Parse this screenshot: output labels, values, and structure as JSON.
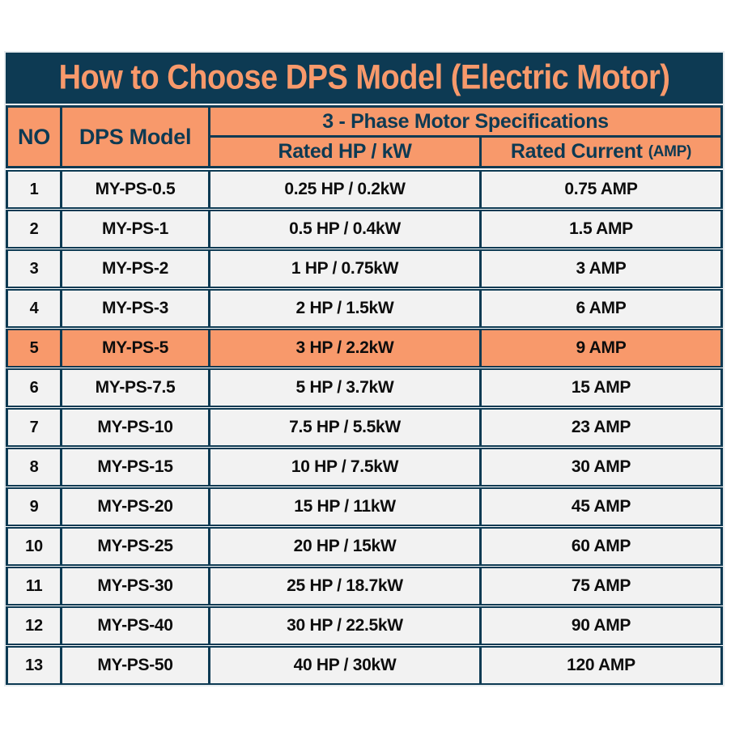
{
  "title": "How to Choose DPS Model (Electric Motor)",
  "colors": {
    "navy": "#0d3a53",
    "orange": "#f8996b",
    "row_bg": "#f2f2f2",
    "data_text": "#0d0d0d",
    "page_bg": "#ffffff"
  },
  "table": {
    "columns": {
      "no": "NO",
      "model": "DPS Model",
      "spec_group": "3 - Phase Motor Specifications",
      "rated_hp": "Rated HP / kW",
      "rated_current": "Rated Current",
      "rated_current_unit": "(AMP)"
    },
    "rows": [
      {
        "no": "1",
        "model": "MY-PS-0.5",
        "hp": "0.25 HP / 0.2kW",
        "amp": "0.75 AMP",
        "highlight": false
      },
      {
        "no": "2",
        "model": "MY-PS-1",
        "hp": "0.5 HP / 0.4kW",
        "amp": "1.5 AMP",
        "highlight": false
      },
      {
        "no": "3",
        "model": "MY-PS-2",
        "hp": "1 HP / 0.75kW",
        "amp": "3 AMP",
        "highlight": false
      },
      {
        "no": "4",
        "model": "MY-PS-3",
        "hp": "2 HP / 1.5kW",
        "amp": "6 AMP",
        "highlight": false
      },
      {
        "no": "5",
        "model": "MY-PS-5",
        "hp": "3 HP / 2.2kW",
        "amp": "9 AMP",
        "highlight": true
      },
      {
        "no": "6",
        "model": "MY-PS-7.5",
        "hp": "5 HP / 3.7kW",
        "amp": "15 AMP",
        "highlight": false
      },
      {
        "no": "7",
        "model": "MY-PS-10",
        "hp": "7.5 HP / 5.5kW",
        "amp": "23 AMP",
        "highlight": false
      },
      {
        "no": "8",
        "model": "MY-PS-15",
        "hp": "10 HP / 7.5kW",
        "amp": "30 AMP",
        "highlight": false
      },
      {
        "no": "9",
        "model": "MY-PS-20",
        "hp": "15 HP / 11kW",
        "amp": "45 AMP",
        "highlight": false
      },
      {
        "no": "10",
        "model": "MY-PS-25",
        "hp": "20 HP / 15kW",
        "amp": "60 AMP",
        "highlight": false
      },
      {
        "no": "11",
        "model": "MY-PS-30",
        "hp": "25 HP / 18.7kW",
        "amp": "75 AMP",
        "highlight": false
      },
      {
        "no": "12",
        "model": "MY-PS-40",
        "hp": "30 HP / 22.5kW",
        "amp": "90 AMP",
        "highlight": false
      },
      {
        "no": "13",
        "model": "MY-PS-50",
        "hp": "40 HP / 30kW",
        "amp": "120 AMP",
        "highlight": false
      }
    ]
  }
}
